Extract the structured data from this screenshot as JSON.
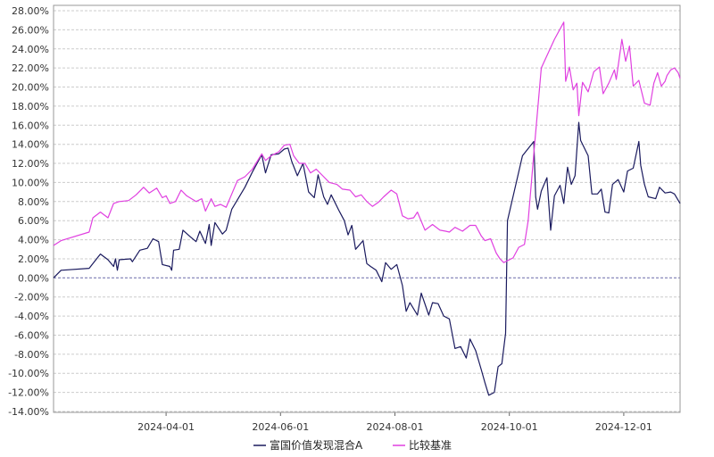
{
  "chart_data": {
    "type": "line",
    "title": "",
    "xlabel": "",
    "ylabel": "",
    "ylim": [
      -14,
      28
    ],
    "y_ticks": [
      28,
      26,
      24,
      22,
      20,
      18,
      16,
      14,
      12,
      10,
      8,
      6,
      4,
      2,
      0,
      -2,
      -4,
      -6,
      -8,
      -10,
      -12,
      -14
    ],
    "y_tick_labels": [
      "28.00%",
      "26.00%",
      "24.00%",
      "22.00%",
      "20.00%",
      "18.00%",
      "16.00%",
      "14.00%",
      "12.00%",
      "10.00%",
      "8.00%",
      "6.00%",
      "4.00%",
      "2.00%",
      "0.00%",
      "-2.00%",
      "-4.00%",
      "-6.00%",
      "-8.00%",
      "-10.00%",
      "-12.00%",
      "-14.00%"
    ],
    "xlim": [
      "2024-02-01",
      "2024-12-31"
    ],
    "x_ticks": [
      "2024-04-01",
      "2024-06-01",
      "2024-08-01",
      "2024-10-01",
      "2024-12-01"
    ],
    "grid": true,
    "legend_position": "bottom-center",
    "colors": {
      "fund": "#1a1a5e",
      "benchmark": "#e040e0",
      "grid": "#cccccc",
      "zero_line": "#6a6aa8",
      "axis": "#666666"
    },
    "series": [
      {
        "name": "富国价值发现混合A",
        "color": "#1a1a5e",
        "points": [
          [
            "2024-02-01",
            0.0
          ],
          [
            "2024-02-05",
            0.8
          ],
          [
            "2024-02-20",
            1.0
          ],
          [
            "2024-02-22",
            1.5
          ],
          [
            "2024-02-26",
            2.5
          ],
          [
            "2024-03-01",
            1.9
          ],
          [
            "2024-03-04",
            1.2
          ],
          [
            "2024-03-05",
            2.0
          ],
          [
            "2024-03-06",
            0.8
          ],
          [
            "2024-03-07",
            1.9
          ],
          [
            "2024-03-13",
            2.0
          ],
          [
            "2024-03-14",
            1.7
          ],
          [
            "2024-03-18",
            2.9
          ],
          [
            "2024-03-22",
            3.1
          ],
          [
            "2024-03-25",
            4.1
          ],
          [
            "2024-03-28",
            3.8
          ],
          [
            "2024-03-30",
            1.4
          ],
          [
            "2024-04-03",
            1.2
          ],
          [
            "2024-04-04",
            0.8
          ],
          [
            "2024-04-05",
            2.9
          ],
          [
            "2024-04-08",
            3.0
          ],
          [
            "2024-04-10",
            5.0
          ],
          [
            "2024-04-14",
            4.3
          ],
          [
            "2024-04-17",
            3.8
          ],
          [
            "2024-04-19",
            4.9
          ],
          [
            "2024-04-22",
            3.6
          ],
          [
            "2024-04-24",
            5.6
          ],
          [
            "2024-04-25",
            3.4
          ],
          [
            "2024-04-27",
            5.8
          ],
          [
            "2024-05-01",
            4.6
          ],
          [
            "2024-05-03",
            5.0
          ],
          [
            "2024-05-06",
            7.2
          ],
          [
            "2024-05-13",
            9.5
          ],
          [
            "2024-05-17",
            11.1
          ],
          [
            "2024-05-22",
            12.9
          ],
          [
            "2024-05-24",
            11.0
          ],
          [
            "2024-05-27",
            12.9
          ],
          [
            "2024-05-31",
            13.0
          ],
          [
            "2024-06-03",
            13.5
          ],
          [
            "2024-06-05",
            13.6
          ],
          [
            "2024-06-07",
            12.2
          ],
          [
            "2024-06-10",
            10.7
          ],
          [
            "2024-06-13",
            12.0
          ],
          [
            "2024-06-16",
            9.0
          ],
          [
            "2024-06-19",
            8.4
          ],
          [
            "2024-06-21",
            10.8
          ],
          [
            "2024-06-24",
            8.5
          ],
          [
            "2024-06-26",
            7.7
          ],
          [
            "2024-06-28",
            8.7
          ],
          [
            "2024-07-02",
            7.1
          ],
          [
            "2024-07-05",
            6.0
          ],
          [
            "2024-07-07",
            4.5
          ],
          [
            "2024-07-09",
            5.5
          ],
          [
            "2024-07-11",
            3.0
          ],
          [
            "2024-07-15",
            3.9
          ],
          [
            "2024-07-17",
            1.5
          ],
          [
            "2024-07-19",
            1.2
          ],
          [
            "2024-07-22",
            0.8
          ],
          [
            "2024-07-25",
            -0.4
          ],
          [
            "2024-07-27",
            1.6
          ],
          [
            "2024-07-30",
            0.9
          ],
          [
            "2024-08-02",
            1.4
          ],
          [
            "2024-08-05",
            -0.8
          ],
          [
            "2024-08-07",
            -3.5
          ],
          [
            "2024-08-09",
            -2.6
          ],
          [
            "2024-08-13",
            -3.9
          ],
          [
            "2024-08-15",
            -1.6
          ],
          [
            "2024-08-19",
            -3.9
          ],
          [
            "2024-08-21",
            -2.6
          ],
          [
            "2024-08-24",
            -2.7
          ],
          [
            "2024-08-27",
            -4.0
          ],
          [
            "2024-08-30",
            -4.3
          ],
          [
            "2024-09-02",
            -7.4
          ],
          [
            "2024-09-05",
            -7.2
          ],
          [
            "2024-09-08",
            -8.4
          ],
          [
            "2024-09-10",
            -6.4
          ],
          [
            "2024-09-13",
            -7.6
          ],
          [
            "2024-09-16",
            -9.6
          ],
          [
            "2024-09-18",
            -11.0
          ],
          [
            "2024-09-20",
            -12.3
          ],
          [
            "2024-09-23",
            -12.0
          ],
          [
            "2024-09-25",
            -9.3
          ],
          [
            "2024-09-27",
            -9.0
          ],
          [
            "2024-09-29",
            -5.8
          ],
          [
            "2024-09-30",
            6.0
          ],
          [
            "2024-10-08",
            12.8
          ],
          [
            "2024-10-14",
            14.3
          ],
          [
            "2024-10-15",
            8.5
          ],
          [
            "2024-10-16",
            7.2
          ],
          [
            "2024-10-18",
            9.1
          ],
          [
            "2024-10-21",
            10.5
          ],
          [
            "2024-10-23",
            5.0
          ],
          [
            "2024-10-25",
            8.6
          ],
          [
            "2024-10-28",
            9.7
          ],
          [
            "2024-10-30",
            7.8
          ],
          [
            "2024-11-01",
            11.6
          ],
          [
            "2024-11-03",
            9.8
          ],
          [
            "2024-11-05",
            10.7
          ],
          [
            "2024-11-07",
            16.3
          ],
          [
            "2024-11-08",
            14.4
          ],
          [
            "2024-11-12",
            12.8
          ],
          [
            "2024-11-14",
            8.8
          ],
          [
            "2024-11-17",
            8.8
          ],
          [
            "2024-11-19",
            9.3
          ],
          [
            "2024-11-21",
            6.9
          ],
          [
            "2024-11-23",
            6.8
          ],
          [
            "2024-11-25",
            9.8
          ],
          [
            "2024-11-28",
            10.3
          ],
          [
            "2024-12-01",
            9.0
          ],
          [
            "2024-12-03",
            11.2
          ],
          [
            "2024-12-06",
            11.5
          ],
          [
            "2024-12-09",
            14.3
          ],
          [
            "2024-12-10",
            11.8
          ],
          [
            "2024-12-12",
            9.8
          ],
          [
            "2024-12-14",
            8.5
          ],
          [
            "2024-12-18",
            8.3
          ],
          [
            "2024-12-20",
            9.5
          ],
          [
            "2024-12-23",
            8.9
          ],
          [
            "2024-12-26",
            9.0
          ],
          [
            "2024-12-28",
            8.8
          ],
          [
            "2024-12-31",
            7.8
          ]
        ]
      },
      {
        "name": "比较基准",
        "color": "#e040e0",
        "points": [
          [
            "2024-02-01",
            3.4
          ],
          [
            "2024-02-05",
            3.9
          ],
          [
            "2024-02-20",
            4.8
          ],
          [
            "2024-02-22",
            6.3
          ],
          [
            "2024-02-26",
            6.9
          ],
          [
            "2024-03-01",
            6.3
          ],
          [
            "2024-03-04",
            7.8
          ],
          [
            "2024-03-07",
            8.0
          ],
          [
            "2024-03-12",
            8.1
          ],
          [
            "2024-03-16",
            8.7
          ],
          [
            "2024-03-20",
            9.5
          ],
          [
            "2024-03-23",
            8.9
          ],
          [
            "2024-03-27",
            9.4
          ],
          [
            "2024-03-30",
            8.4
          ],
          [
            "2024-04-01",
            8.6
          ],
          [
            "2024-04-03",
            7.8
          ],
          [
            "2024-04-06",
            8.0
          ],
          [
            "2024-04-09",
            9.2
          ],
          [
            "2024-04-12",
            8.6
          ],
          [
            "2024-04-17",
            8.0
          ],
          [
            "2024-04-20",
            8.3
          ],
          [
            "2024-04-22",
            7.0
          ],
          [
            "2024-04-25",
            8.3
          ],
          [
            "2024-04-27",
            7.5
          ],
          [
            "2024-04-30",
            7.7
          ],
          [
            "2024-05-03",
            7.4
          ],
          [
            "2024-05-06",
            8.8
          ],
          [
            "2024-05-09",
            10.2
          ],
          [
            "2024-05-13",
            10.6
          ],
          [
            "2024-05-17",
            11.4
          ],
          [
            "2024-05-22",
            13.0
          ],
          [
            "2024-05-24",
            12.3
          ],
          [
            "2024-05-27",
            12.8
          ],
          [
            "2024-05-31",
            13.2
          ],
          [
            "2024-06-03",
            13.9
          ],
          [
            "2024-06-06",
            14.0
          ],
          [
            "2024-06-08",
            12.8
          ],
          [
            "2024-06-11",
            12.0
          ],
          [
            "2024-06-14",
            12.0
          ],
          [
            "2024-06-17",
            11.0
          ],
          [
            "2024-06-20",
            11.4
          ],
          [
            "2024-06-24",
            10.6
          ],
          [
            "2024-06-27",
            10.0
          ],
          [
            "2024-07-01",
            9.8
          ],
          [
            "2024-07-04",
            9.3
          ],
          [
            "2024-07-08",
            9.2
          ],
          [
            "2024-07-11",
            8.5
          ],
          [
            "2024-07-14",
            8.7
          ],
          [
            "2024-07-17",
            8.0
          ],
          [
            "2024-07-20",
            7.5
          ],
          [
            "2024-07-23",
            7.9
          ],
          [
            "2024-07-26",
            8.5
          ],
          [
            "2024-07-30",
            9.2
          ],
          [
            "2024-08-02",
            8.8
          ],
          [
            "2024-08-05",
            6.5
          ],
          [
            "2024-08-08",
            6.2
          ],
          [
            "2024-08-11",
            6.3
          ],
          [
            "2024-08-13",
            6.9
          ],
          [
            "2024-08-17",
            5.0
          ],
          [
            "2024-08-21",
            5.6
          ],
          [
            "2024-08-25",
            5.0
          ],
          [
            "2024-08-28",
            4.9
          ],
          [
            "2024-08-30",
            4.8
          ],
          [
            "2024-09-02",
            5.3
          ],
          [
            "2024-09-06",
            4.9
          ],
          [
            "2024-09-10",
            5.5
          ],
          [
            "2024-09-13",
            5.5
          ],
          [
            "2024-09-16",
            4.4
          ],
          [
            "2024-09-18",
            3.9
          ],
          [
            "2024-09-21",
            4.1
          ],
          [
            "2024-09-24",
            2.6
          ],
          [
            "2024-09-26",
            2.0
          ],
          [
            "2024-09-28",
            1.6
          ],
          [
            "2024-10-03",
            2.1
          ],
          [
            "2024-10-06",
            3.2
          ],
          [
            "2024-10-09",
            3.5
          ],
          [
            "2024-10-11",
            6.0
          ],
          [
            "2024-10-14",
            13.0
          ],
          [
            "2024-10-18",
            22.0
          ],
          [
            "2024-10-25",
            25.0
          ],
          [
            "2024-10-30",
            26.8
          ],
          [
            "2024-10-31",
            20.6
          ],
          [
            "2024-11-02",
            22.1
          ],
          [
            "2024-11-04",
            19.7
          ],
          [
            "2024-11-06",
            20.4
          ],
          [
            "2024-11-07",
            17.0
          ],
          [
            "2024-11-09",
            20.5
          ],
          [
            "2024-11-12",
            19.5
          ],
          [
            "2024-11-15",
            21.6
          ],
          [
            "2024-11-18",
            22.1
          ],
          [
            "2024-11-20",
            19.3
          ],
          [
            "2024-11-23",
            20.4
          ],
          [
            "2024-11-26",
            21.8
          ],
          [
            "2024-11-27",
            20.8
          ],
          [
            "2024-11-30",
            25.0
          ],
          [
            "2024-12-02",
            22.7
          ],
          [
            "2024-12-04",
            24.3
          ],
          [
            "2024-12-06",
            20.1
          ],
          [
            "2024-12-09",
            20.7
          ],
          [
            "2024-12-12",
            18.3
          ],
          [
            "2024-12-15",
            18.1
          ],
          [
            "2024-12-17",
            20.4
          ],
          [
            "2024-12-19",
            21.5
          ],
          [
            "2024-12-21",
            20.1
          ],
          [
            "2024-12-23",
            20.6
          ],
          [
            "2024-12-24",
            21.2
          ],
          [
            "2024-12-26",
            21.8
          ],
          [
            "2024-12-28",
            22.0
          ],
          [
            "2024-12-30",
            21.5
          ],
          [
            "2024-12-31",
            20.9
          ]
        ]
      }
    ]
  }
}
